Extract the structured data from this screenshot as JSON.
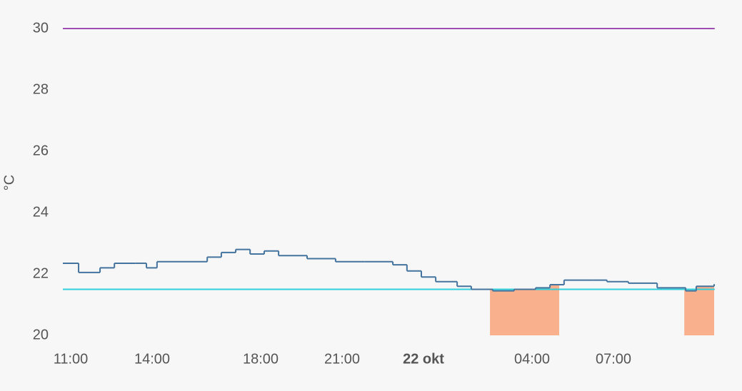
{
  "chart_data": {
    "type": "step-line",
    "y_label": "°C",
    "xlim": [
      10.71,
      34.71
    ],
    "xticks": [
      {
        "value": 11,
        "label": "11:00"
      },
      {
        "value": 14,
        "label": "14:00"
      },
      {
        "value": 18,
        "label": "18:00"
      },
      {
        "value": 21,
        "label": "21:00"
      },
      {
        "value": 24,
        "label": "22 okt"
      },
      {
        "value": 28,
        "label": "04:00"
      },
      {
        "value": 31,
        "label": "07:00"
      }
    ],
    "ylim": [
      20,
      30
    ],
    "yticks": [
      20,
      22,
      24,
      26,
      28,
      30
    ],
    "series": [
      {
        "color": "#44739e",
        "x": [
          10.71,
          11.29,
          12.08,
          12.61,
          13.39,
          13.79,
          14.18,
          15.5,
          16.03,
          16.55,
          17.08,
          17.61,
          18.13,
          18.66,
          19.71,
          20.76,
          21.82,
          22.87,
          23.39,
          23.92,
          24.45,
          25.24,
          25.76,
          26.55,
          27.34,
          28.13,
          28.66,
          29.18,
          30.24,
          30.76,
          31.55,
          32.61,
          33.66,
          34.05,
          34.71
        ],
        "values": [
          22.35,
          22.05,
          22.2,
          22.35,
          22.35,
          22.2,
          22.4,
          22.4,
          22.55,
          22.7,
          22.8,
          22.65,
          22.75,
          22.6,
          22.5,
          22.4,
          22.4,
          22.3,
          22.1,
          21.9,
          21.75,
          21.6,
          21.5,
          21.45,
          21.5,
          21.55,
          21.65,
          21.8,
          21.8,
          21.75,
          21.7,
          21.55,
          21.45,
          21.6,
          21.65
        ]
      },
      {
        "color": "#2fd0dc",
        "x": [
          10.71,
          34.71
        ],
        "values": [
          21.5,
          21.5
        ]
      },
      {
        "color": "#9c4fb0",
        "x": [
          10.71,
          34.71
        ],
        "values": [
          30,
          30
        ]
      }
    ],
    "heating": {
      "color": "#f9b08c",
      "periods": [
        [
          26.45,
          29.0
        ],
        [
          33.61,
          34.71
        ]
      ]
    }
  }
}
